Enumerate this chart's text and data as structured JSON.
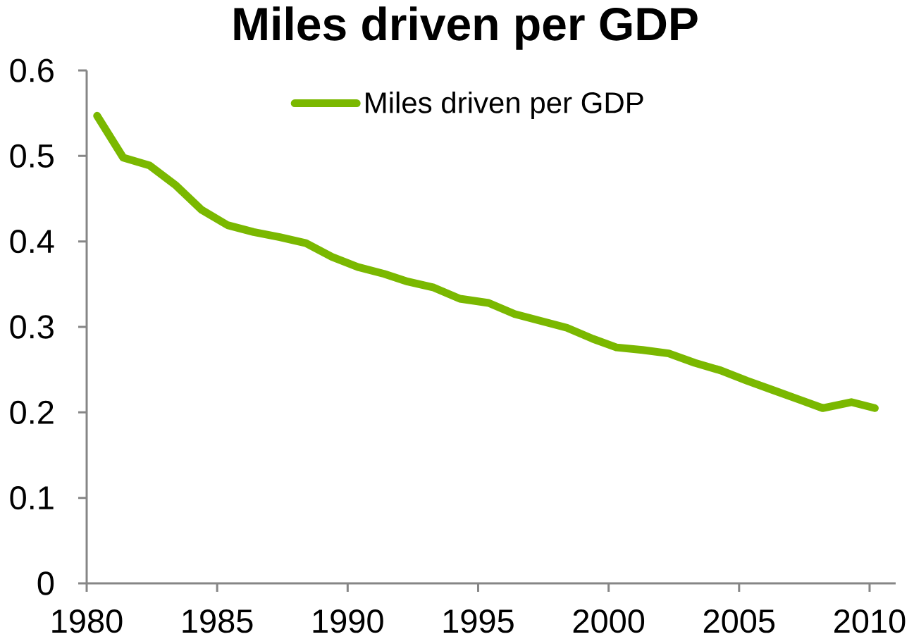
{
  "chart_data": {
    "type": "line",
    "title": "Miles driven per GDP",
    "x": [
      1980.4,
      1981.4,
      1982.4,
      1983.4,
      1984.4,
      1985.4,
      1986.4,
      1987.4,
      1988.4,
      1989.4,
      1990.4,
      1991.4,
      1992.3,
      1993.3,
      1994.3,
      1995.4,
      1996.4,
      1997.4,
      1998.4,
      1999.4,
      2000.3,
      2001.3,
      2002.3,
      2003.3,
      2004.3,
      2005.3,
      2006.3,
      2007.3,
      2008.2,
      2009.3,
      2010.2
    ],
    "series": [
      {
        "name": "Miles driven per GDP",
        "color": "#7ab800",
        "values": [
          0.547,
          0.498,
          0.489,
          0.466,
          0.437,
          0.419,
          0.411,
          0.405,
          0.398,
          0.382,
          0.37,
          0.362,
          0.353,
          0.346,
          0.333,
          0.328,
          0.315,
          0.307,
          0.299,
          0.286,
          0.276,
          0.273,
          0.269,
          0.258,
          0.249,
          0.237,
          0.226,
          0.215,
          0.205,
          0.212,
          0.205
        ]
      }
    ],
    "xlim": [
      1980,
      2011
    ],
    "xticks": [
      1980,
      1985,
      1990,
      1995,
      2000,
      2005,
      2010
    ],
    "ylim": [
      0,
      0.6
    ],
    "yticks": [
      0,
      0.1,
      0.2,
      0.3,
      0.4,
      0.5,
      0.6
    ],
    "grid": false,
    "legend": "top",
    "marker": "none",
    "line_style": "solid"
  }
}
